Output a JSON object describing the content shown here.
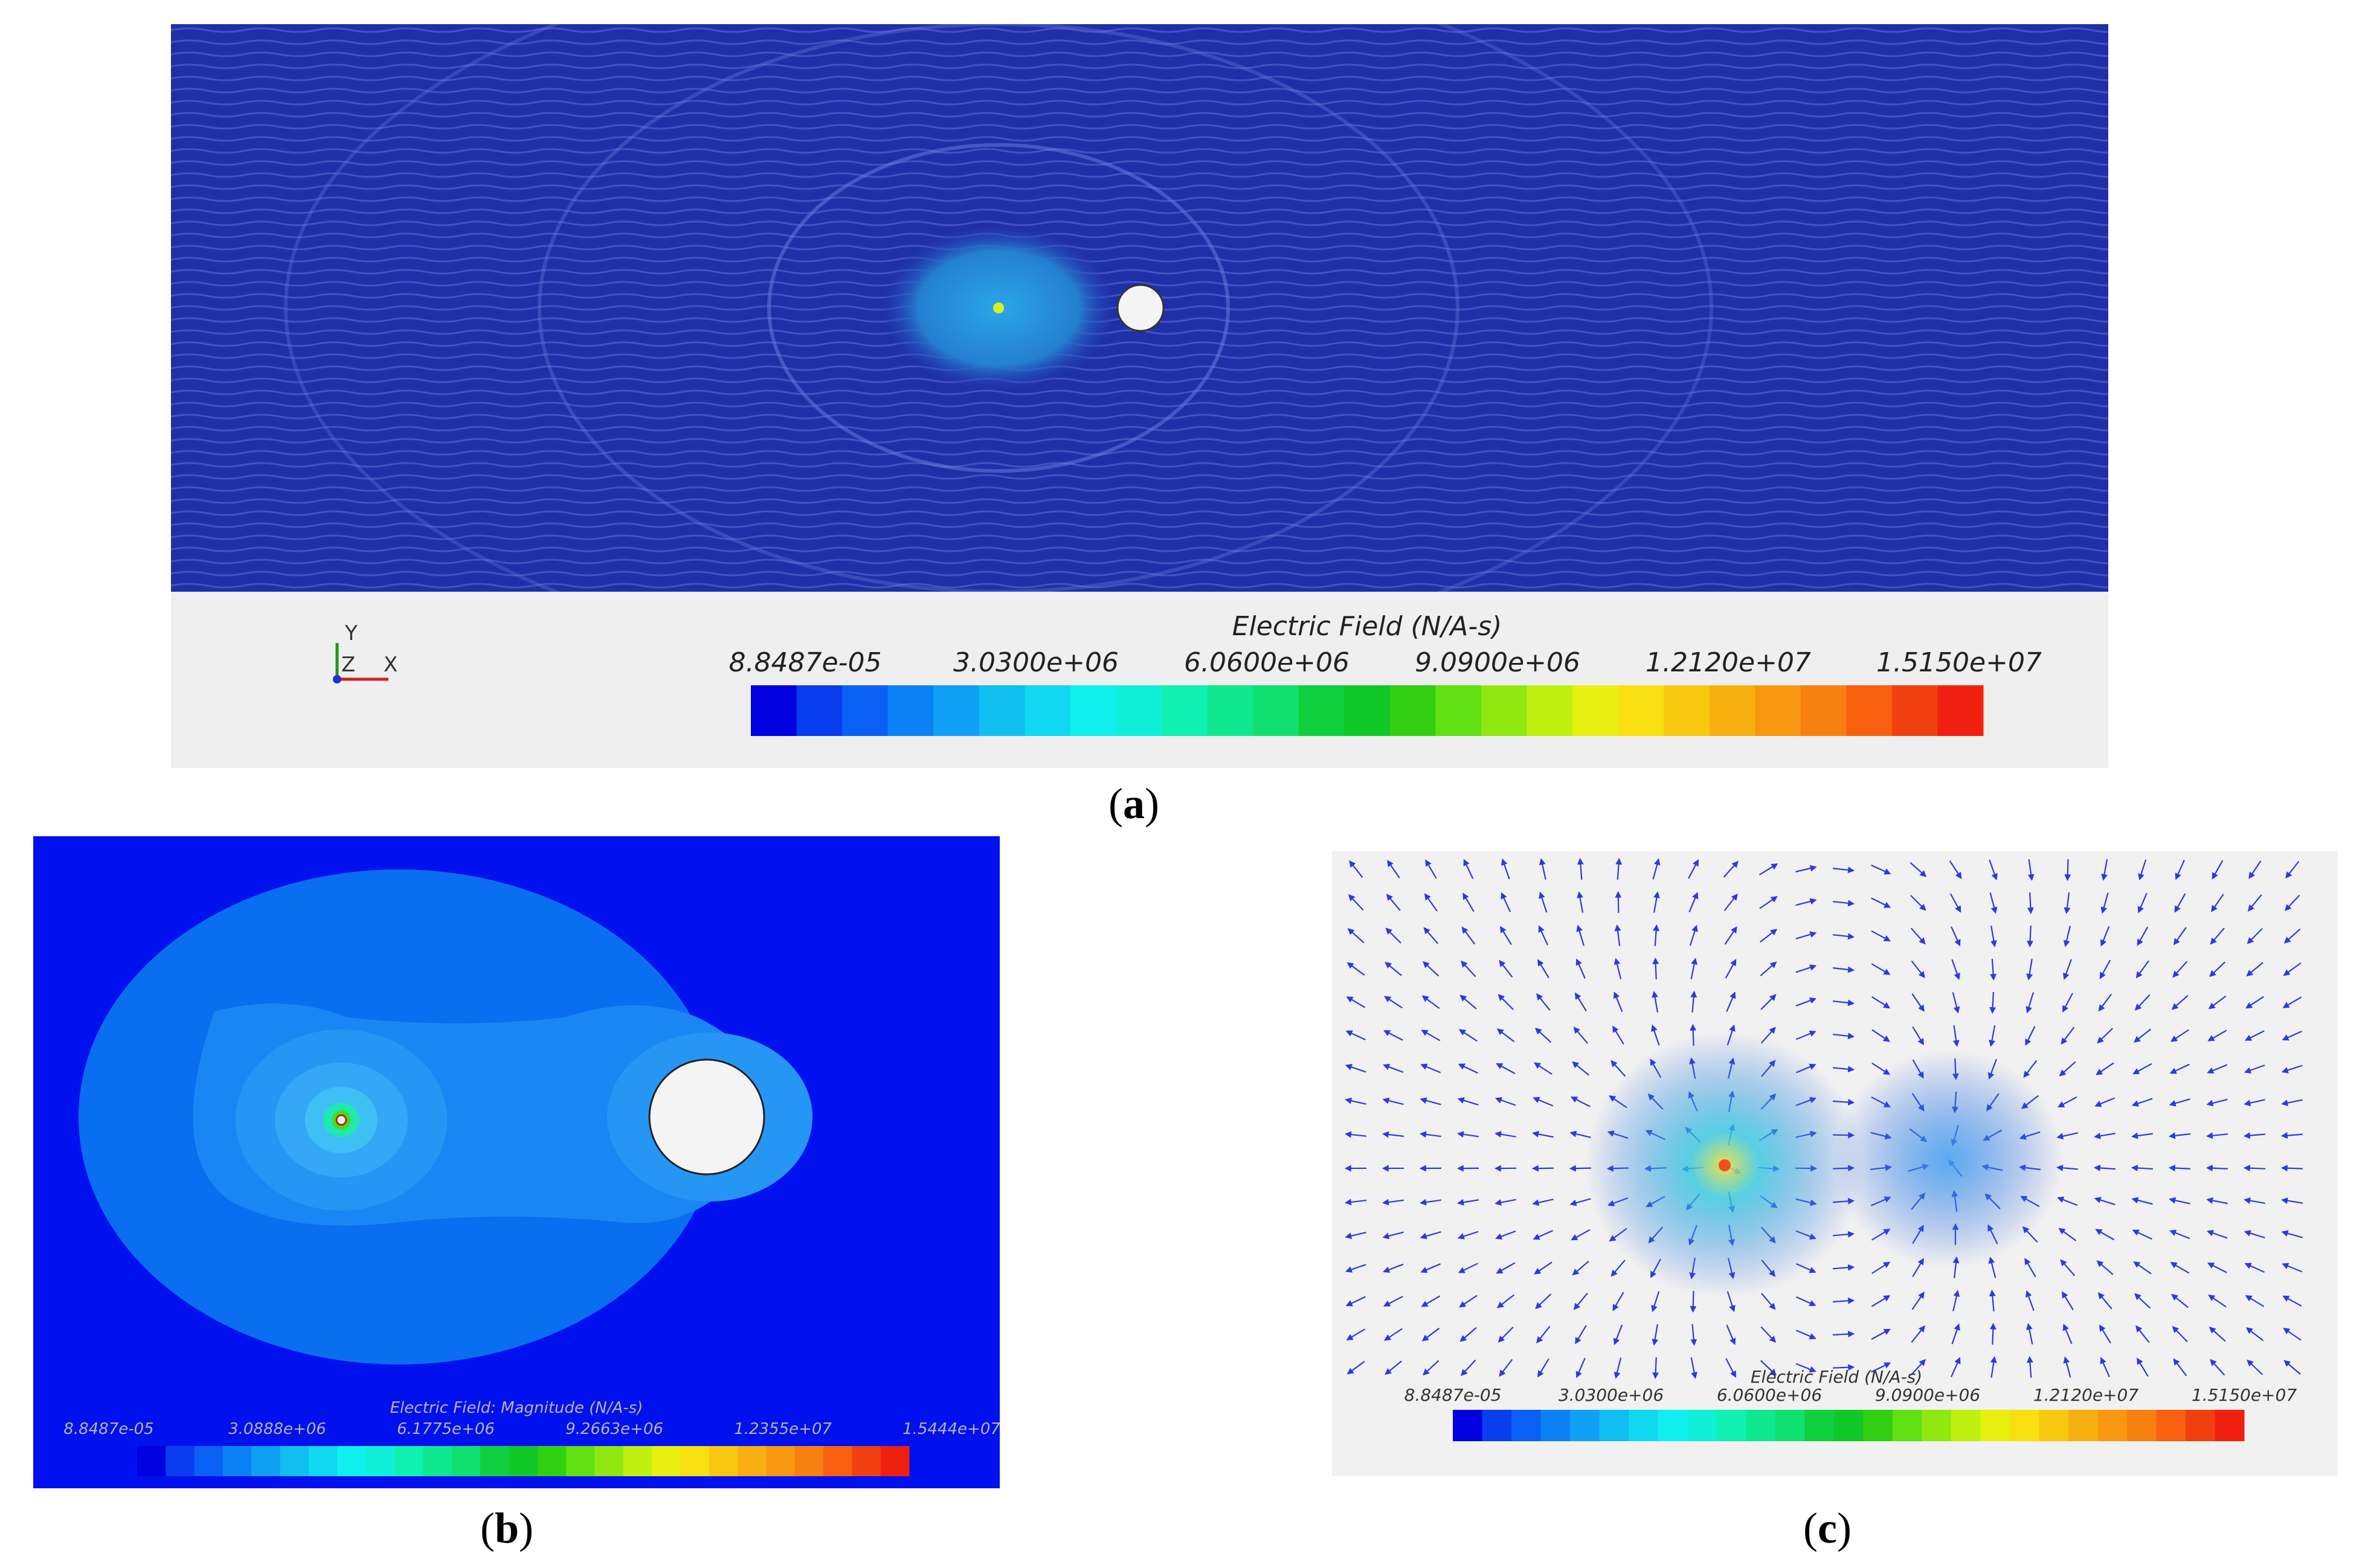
{
  "panels": {
    "a": {
      "caption_letter": "a",
      "colorbar_title": "Electric Field (N/A-s)",
      "colorbar_ticks": [
        "8.8487e-05",
        "3.0300e+06",
        "6.0600e+06",
        "9.0900e+06",
        "1.2120e+07",
        "1.5150e+07"
      ],
      "axes": {
        "y": "Y",
        "z": "Z",
        "x": "X"
      }
    },
    "b": {
      "caption_letter": "b",
      "colorbar_title": "Electric Field: Magnitude (N/A-s)",
      "colorbar_ticks": [
        "8.8487e-05",
        "3.0888e+06",
        "6.1775e+06",
        "9.2663e+06",
        "1.2355e+07",
        "1.5444e+07"
      ]
    },
    "c": {
      "caption_letter": "c",
      "colorbar_title": "Electric Field (N/A-s)",
      "colorbar_ticks": [
        "8.8487e-05",
        "3.0300e+06",
        "6.0600e+06",
        "9.0900e+06",
        "1.2120e+07",
        "1.5150e+07"
      ]
    }
  },
  "colors": {
    "field_background": "#1f2fa8",
    "legend_panel": "#efefef",
    "contour_outer": "#0010ee",
    "contour_level1": "#0a6ef0",
    "contour_level2": "#1a86f3",
    "electrode": "#f4f4f4",
    "arrow": "#2a3be0"
  }
}
